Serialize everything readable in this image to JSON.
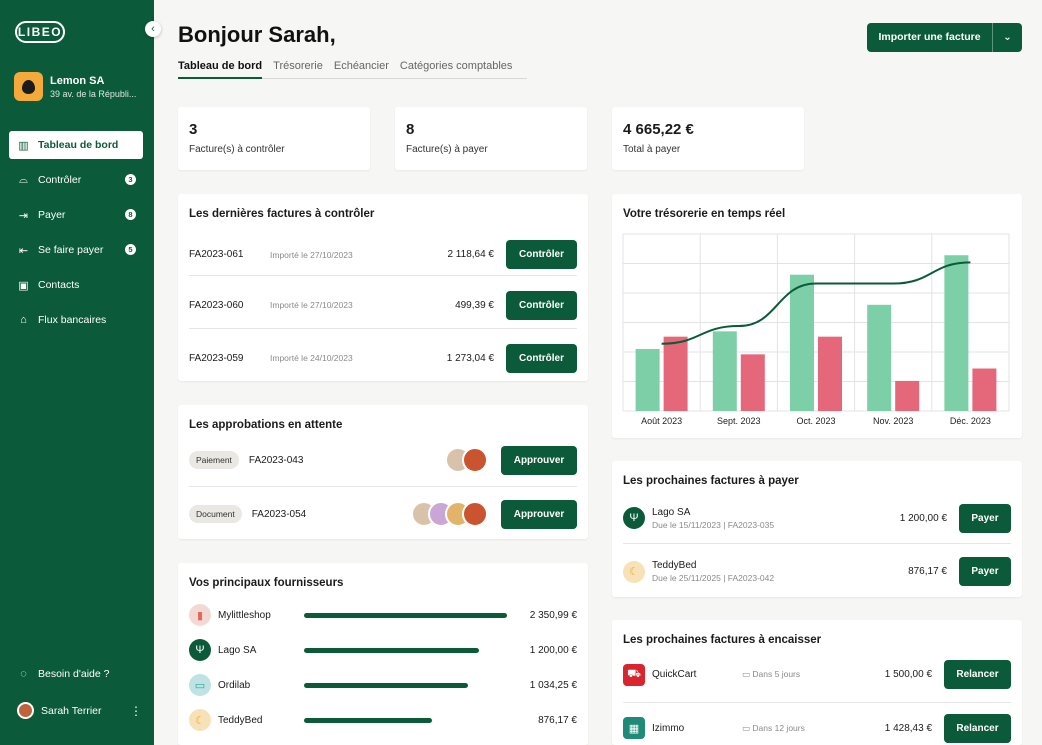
{
  "brand": "LIBEO",
  "company": {
    "name": "Lemon SA",
    "address": "39 av. de la Républi..."
  },
  "nav": [
    {
      "label": "Tableau de bord",
      "icon": "chart-icon",
      "badge": ""
    },
    {
      "label": "Contrôler",
      "icon": "inbox-icon",
      "badge": "3"
    },
    {
      "label": "Payer",
      "icon": "arrow-right-icon",
      "badge": "8"
    },
    {
      "label": "Se faire payer",
      "icon": "arrow-in-icon",
      "badge": "5"
    },
    {
      "label": "Contacts",
      "icon": "contacts-icon",
      "badge": ""
    },
    {
      "label": "Flux bancaires",
      "icon": "bank-icon",
      "badge": ""
    }
  ],
  "help_label": "Besoin d'aide ?",
  "user_name": "Sarah Terrier",
  "greeting": "Bonjour Sarah,",
  "tabs": [
    "Tableau de bord",
    "Trésorerie",
    "Echéancier",
    "Catégories comptables"
  ],
  "import_label": "Importer une facture",
  "kpis": [
    {
      "value": "3",
      "label": "Facture(s) à contrôler"
    },
    {
      "value": "8",
      "label": "Facture(s) à payer"
    },
    {
      "value": "4 665,22 €",
      "label": "Total à payer"
    }
  ],
  "control": {
    "title": "Les dernières factures à contrôler",
    "button": "Contrôler",
    "rows": [
      {
        "ref": "FA2023-061",
        "date": "Importé le 27/10/2023",
        "amount": "2 118,64 €"
      },
      {
        "ref": "FA2023-060",
        "date": "Importé le 27/10/2023",
        "amount": "499,39 €"
      },
      {
        "ref": "FA2023-059",
        "date": "Importé le 24/10/2023",
        "amount": "1 273,04 €"
      }
    ]
  },
  "approvals": {
    "title": "Les approbations en attente",
    "button": "Approuver",
    "rows": [
      {
        "type": "Paiement",
        "ref": "FA2023-043"
      },
      {
        "type": "Document",
        "ref": "FA2023-054"
      }
    ]
  },
  "suppliers": {
    "title": "Vos principaux fournisseurs",
    "rows": [
      {
        "name": "Mylittleshop",
        "amount": "2 350,99 €",
        "share": 1.0,
        "color": "#f3d9d3"
      },
      {
        "name": "Lago SA",
        "amount": "1 200,00 €",
        "share": 0.86,
        "color": "#0b5b3a"
      },
      {
        "name": "Ordilab",
        "amount": "1 034,25 €",
        "share": 0.81,
        "color": "#bfe3e3"
      },
      {
        "name": "TeddyBed",
        "amount": "876,17 €",
        "share": 0.63,
        "color": "#f6e2b6"
      }
    ]
  },
  "treasury": {
    "title": "Votre trésorerie en temps réel"
  },
  "chart_data": {
    "type": "bar",
    "categories": [
      "Août 2023",
      "Sept. 2023",
      "Oct. 2023",
      "Nov. 2023",
      "Déc. 2023"
    ],
    "series": [
      {
        "values": [
          35,
          45,
          77,
          60,
          88
        ],
        "color": "#7ccfa7"
      },
      {
        "values": [
          42,
          32,
          42,
          17,
          24
        ],
        "color": "#e5687a"
      }
    ],
    "line": {
      "values": [
        38,
        48,
        72,
        72,
        84
      ],
      "color": "#0b5b3a"
    },
    "ylim": [
      0,
      100
    ],
    "grid": true
  },
  "to_pay": {
    "title": "Les prochaines factures à payer",
    "button": "Payer",
    "rows": [
      {
        "name": "Lago SA",
        "sub": "Due le 15/11/2023 | FA2023-035",
        "amount": "1 200,00 €"
      },
      {
        "name": "TeddyBed",
        "sub": "Due le 25/11/2025 | FA2023-042",
        "amount": "876,17 €"
      }
    ]
  },
  "to_collect": {
    "title": "Les prochaines factures à encaisser",
    "button": "Relancer",
    "rows": [
      {
        "name": "QuickCart",
        "due": "Dans 5 jours",
        "amount": "1 500,00 €"
      },
      {
        "name": "Izimmo",
        "due": "Dans 12 jours",
        "amount": "1 428,43 €"
      }
    ]
  }
}
